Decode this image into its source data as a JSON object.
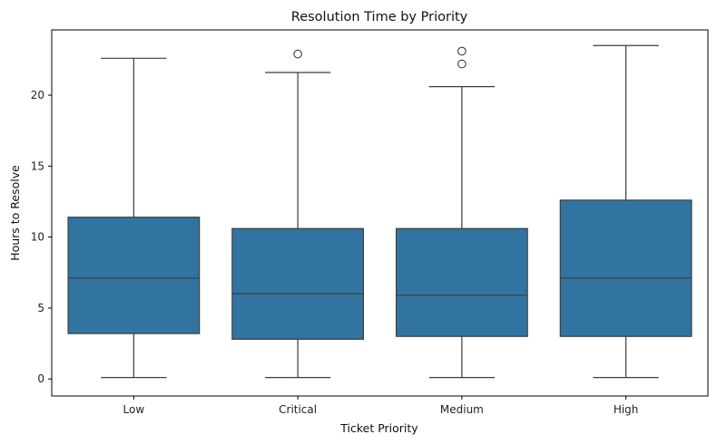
{
  "chart_data": {
    "type": "box",
    "title": "Resolution Time by Priority",
    "xlabel": "Ticket Priority",
    "ylabel": "Hours to Resolve",
    "categories": [
      "Low",
      "Critical",
      "Medium",
      "High"
    ],
    "boxes": [
      {
        "category": "Low",
        "whisker_low": 0.1,
        "q1": 3.2,
        "median": 7.1,
        "q3": 11.4,
        "whisker_high": 22.6,
        "outliers": []
      },
      {
        "category": "Critical",
        "whisker_low": 0.1,
        "q1": 2.8,
        "median": 6.0,
        "q3": 10.6,
        "whisker_high": 21.6,
        "outliers": [
          22.9
        ]
      },
      {
        "category": "Medium",
        "whisker_low": 0.1,
        "q1": 3.0,
        "median": 5.9,
        "q3": 10.6,
        "whisker_high": 20.6,
        "outliers": [
          22.2,
          23.1
        ]
      },
      {
        "category": "High",
        "whisker_low": 0.1,
        "q1": 3.0,
        "median": 7.1,
        "q3": 12.6,
        "whisker_high": 23.5,
        "outliers": []
      }
    ],
    "ylim": [
      -1.2,
      24.6
    ],
    "yticks": [
      0,
      5,
      10,
      15,
      20
    ],
    "grid": false,
    "colors": {
      "box_fill": "#3274a1",
      "line": "#3d3d3d"
    }
  }
}
